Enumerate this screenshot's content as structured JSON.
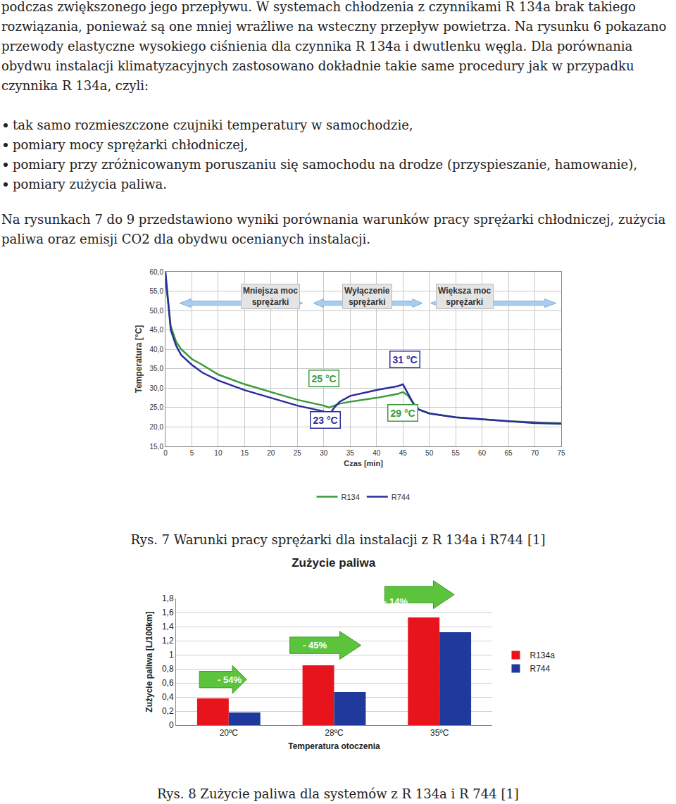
{
  "paragraphs": [
    "podczas zwiększonego jego przepływu. W systemach chłodzenia z czynnikami R 134a brak takiego rozwiązania, ponieważ są one mniej wrażliwe na wsteczny przepływ powietrza. Na rysunku 6 pokazano przewody elastyczne wysokiego ciśnienia dla czynnika R 134a  i dwutlenku węgla. Dla porównania obydwu instalacji klimatyzacyjnych zastosowano dokładnie takie same procedury jak w przypadku czynnika R 134a, czyli:",
    "Na rysunkach 7 do 9 przedstawiono  wyniki porównania warunków pracy sprężarki chłodniczej, zużycia paliwa oraz emisji CO2  dla obydwu ocenianych instalacji."
  ],
  "bullets": [
    "tak samo rozmieszczone czujniki temperatury w samochodzie,",
    "pomiary mocy sprężarki chłodniczej,",
    "pomiary przy zróżnicowanym poruszaniu się samochodu na drodze (przyspieszanie, hamowanie),",
    "pomiary zużycia paliwa."
  ],
  "chart_data": [
    {
      "type": "line",
      "x_label": "Czas [min]",
      "y_label": "Temperatura [°C]",
      "x": [
        0,
        1,
        2,
        3,
        5,
        7,
        10,
        15,
        20,
        25,
        30,
        31,
        32,
        33,
        35,
        40,
        44,
        45,
        46,
        47,
        48,
        50,
        55,
        60,
        65,
        70,
        75
      ],
      "series": [
        {
          "name": "R134",
          "color": "#3a9a3a",
          "values": [
            58,
            46,
            42,
            40,
            37.5,
            36,
            33.5,
            31,
            29,
            27,
            25.5,
            25,
            25.5,
            26,
            26.5,
            27.5,
            28.5,
            29,
            28,
            26,
            24.5,
            23.5,
            22.5,
            22,
            21.5,
            21.2,
            21
          ]
        },
        {
          "name": "R744",
          "color": "#2c2c9c",
          "values": [
            60,
            45,
            41,
            38.5,
            36,
            34,
            32,
            29.5,
            27.5,
            25.5,
            24,
            23,
            25,
            26.5,
            28,
            29.5,
            30.5,
            31,
            28.5,
            26,
            24.5,
            23.5,
            22.5,
            22,
            21.5,
            21,
            20.8
          ]
        }
      ],
      "xlim": [
        0,
        75
      ],
      "xticks": [
        0,
        5,
        10,
        15,
        20,
        25,
        30,
        35,
        40,
        45,
        50,
        55,
        60,
        65,
        70,
        75
      ],
      "ylim": [
        15,
        60
      ],
      "yticks": [
        {
          "value": 15,
          "label": "15,0"
        },
        {
          "value": 20,
          "label": "20,0"
        },
        {
          "value": 25,
          "label": "25,0"
        },
        {
          "value": 30,
          "label": "30,0"
        },
        {
          "value": 35,
          "label": "35,0"
        },
        {
          "value": 40,
          "label": "40,0"
        },
        {
          "value": 45,
          "label": "45,0"
        },
        {
          "value": 50,
          "label": "50,0"
        },
        {
          "value": 55,
          "label": "55,0"
        },
        {
          "value": 60,
          "label": "60,0"
        }
      ],
      "grid": true,
      "legend": "bottom",
      "annotations": [
        "Mniejsza moc\nsprężarki",
        "Wyłączenie\nsprężarki",
        "Większa moc\nsprężarki",
        "25 °C",
        "31 °C",
        "23 °C",
        "29 °C"
      ]
    },
    {
      "type": "bar",
      "title": "Zużycie paliwa",
      "x_label": "Temperatura otoczenia",
      "y_label": "Zużycie paliwa [L/100km]",
      "categories": [
        "20ºC",
        "28ºC",
        "35ºC"
      ],
      "series": [
        {
          "name": "R134a",
          "color": "#e8141c",
          "values": [
            0.38,
            0.85,
            1.53
          ]
        },
        {
          "name": "R744",
          "color": "#1f3a9c",
          "values": [
            0.18,
            0.47,
            1.32
          ]
        }
      ],
      "ylim": [
        0,
        1.8
      ],
      "yticks": [
        {
          "value": 0,
          "label": "0"
        },
        {
          "value": 0.2,
          "label": "0,2"
        },
        {
          "value": 0.4,
          "label": "0,4"
        },
        {
          "value": 0.6,
          "label": "0,6"
        },
        {
          "value": 0.8,
          "label": "0,8"
        },
        {
          "value": 1,
          "label": "1"
        },
        {
          "value": 1.2,
          "label": "1,2"
        },
        {
          "value": 1.4,
          "label": "1,4"
        },
        {
          "value": 1.6,
          "label": "1,6"
        },
        {
          "value": 1.8,
          "label": "1,8"
        }
      ],
      "grid": true,
      "legend": "right",
      "annotations": [
        "- 54%",
        "- 45%",
        "- 14%"
      ]
    }
  ],
  "captions": [
    "Rys. 7 Warunki  pracy sprężarki dla instalacji z R 134a i R744 [1]",
    "Rys. 8 Zużycie paliwa dla systemów z R 134a i R 744 [1]"
  ]
}
